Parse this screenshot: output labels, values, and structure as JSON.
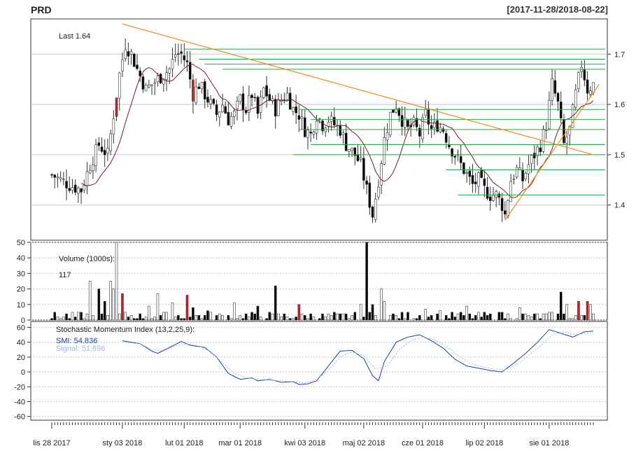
{
  "header": {
    "symbol": "PRD",
    "range": "[2017-11-28/2018-08-22]"
  },
  "colors": {
    "up": "#ffffff",
    "down": "#000000",
    "alt": "#cc2222",
    "grey": "#8c8c8c",
    "ma": "#7a1f1f",
    "trend": "#f08a1f",
    "levels": "#22aa44",
    "smi": "#1a3fa8",
    "signal": "#9fb8e8",
    "grid": "#c8c8c8"
  },
  "chart_data": [
    {
      "type": "candlestick",
      "panel": "price",
      "annotation": "Last 1.64",
      "ylim": [
        1.33,
        1.77
      ],
      "yticks": [
        1.4,
        1.5,
        1.6,
        1.7
      ],
      "ytick_labels": [
        "1.4",
        "1.5",
        "1.6",
        "1.7"
      ],
      "x_ticks": [
        {
          "i": 0,
          "label": "lis 28 2017"
        },
        {
          "i": 24,
          "label": "sty 03 2018"
        },
        {
          "i": 45,
          "label": "lut 01 2018"
        },
        {
          "i": 64,
          "label": "mar 01 2018"
        },
        {
          "i": 86,
          "label": "kwi 03 2018"
        },
        {
          "i": 106,
          "label": "maj 02 2018"
        },
        {
          "i": 126,
          "label": "cze 01 2018"
        },
        {
          "i": 147,
          "label": "lip 02 2018"
        },
        {
          "i": 169,
          "label": "sie 01 2018"
        }
      ],
      "n_bars": 185,
      "key_points": [
        [
          0,
          1.46
        ],
        [
          3,
          1.45
        ],
        [
          6,
          1.44
        ],
        [
          10,
          1.43
        ],
        [
          13,
          1.48
        ],
        [
          16,
          1.52
        ],
        [
          19,
          1.5
        ],
        [
          21,
          1.58
        ],
        [
          23,
          1.66
        ],
        [
          25,
          1.72
        ],
        [
          27,
          1.7
        ],
        [
          29,
          1.67
        ],
        [
          32,
          1.63
        ],
        [
          34,
          1.64
        ],
        [
          36,
          1.65
        ],
        [
          38,
          1.66
        ],
        [
          40,
          1.67
        ],
        [
          42,
          1.7
        ],
        [
          44,
          1.7
        ],
        [
          46,
          1.68
        ],
        [
          48,
          1.62
        ],
        [
          50,
          1.64
        ],
        [
          52,
          1.62
        ],
        [
          54,
          1.6
        ],
        [
          56,
          1.58
        ],
        [
          58,
          1.6
        ],
        [
          60,
          1.57
        ],
        [
          62,
          1.58
        ],
        [
          64,
          1.61
        ],
        [
          66,
          1.59
        ],
        [
          68,
          1.62
        ],
        [
          70,
          1.58
        ],
        [
          72,
          1.63
        ],
        [
          74,
          1.61
        ],
        [
          76,
          1.59
        ],
        [
          78,
          1.61
        ],
        [
          80,
          1.62
        ],
        [
          82,
          1.59
        ],
        [
          84,
          1.58
        ],
        [
          86,
          1.55
        ],
        [
          88,
          1.54
        ],
        [
          90,
          1.58
        ],
        [
          92,
          1.56
        ],
        [
          94,
          1.57
        ],
        [
          96,
          1.56
        ],
        [
          98,
          1.55
        ],
        [
          100,
          1.52
        ],
        [
          103,
          1.5
        ],
        [
          105,
          1.48
        ],
        [
          107,
          1.43
        ],
        [
          109,
          1.38
        ],
        [
          111,
          1.45
        ],
        [
          113,
          1.53
        ],
        [
          115,
          1.58
        ],
        [
          117,
          1.6
        ],
        [
          119,
          1.57
        ],
        [
          121,
          1.55
        ],
        [
          123,
          1.56
        ],
        [
          125,
          1.54
        ],
        [
          127,
          1.58
        ],
        [
          129,
          1.55
        ],
        [
          131,
          1.56
        ],
        [
          133,
          1.55
        ],
        [
          135,
          1.52
        ],
        [
          137,
          1.5
        ],
        [
          139,
          1.48
        ],
        [
          141,
          1.46
        ],
        [
          143,
          1.44
        ],
        [
          145,
          1.45
        ],
        [
          147,
          1.43
        ],
        [
          149,
          1.42
        ],
        [
          151,
          1.42
        ],
        [
          153,
          1.4
        ],
        [
          154,
          1.38
        ],
        [
          156,
          1.45
        ],
        [
          158,
          1.47
        ],
        [
          160,
          1.45
        ],
        [
          162,
          1.48
        ],
        [
          164,
          1.5
        ],
        [
          166,
          1.52
        ],
        [
          168,
          1.56
        ],
        [
          170,
          1.64
        ],
        [
          172,
          1.6
        ],
        [
          174,
          1.52
        ],
        [
          176,
          1.55
        ],
        [
          178,
          1.62
        ],
        [
          180,
          1.68
        ],
        [
          182,
          1.63
        ],
        [
          184,
          1.64
        ]
      ],
      "ma_window": 10,
      "trendlines": [
        {
          "from": [
            24,
            1.76
          ],
          "to": [
            184,
            1.5
          ]
        },
        {
          "from": [
            154,
            1.37
          ],
          "to": [
            186,
            1.64
          ]
        }
      ],
      "levels": [
        {
          "y": 1.71,
          "from": 45
        },
        {
          "y": 1.69,
          "from": 50
        },
        {
          "y": 1.68,
          "from": 52
        },
        {
          "y": 1.67,
          "from": 58
        },
        {
          "y": 1.59,
          "from": 84
        },
        {
          "y": 1.57,
          "from": 88
        },
        {
          "y": 1.55,
          "from": 84
        },
        {
          "y": 1.52,
          "from": 88
        },
        {
          "y": 1.5,
          "from": 82
        },
        {
          "y": 1.47,
          "from": 134
        },
        {
          "y": 1.42,
          "from": 138
        }
      ]
    },
    {
      "type": "bar",
      "panel": "volume",
      "title": "Volume (1000s):",
      "last": "117",
      "ylim": [
        0,
        50
      ],
      "yticks": [
        0,
        10,
        20,
        30,
        40,
        50
      ],
      "ytick_labels": [
        "0",
        "10",
        "20",
        "30",
        "40",
        "50"
      ],
      "peaks": [
        {
          "i": 13,
          "v": 25
        },
        {
          "i": 16,
          "v": 20
        },
        {
          "i": 18,
          "v": 12
        },
        {
          "i": 20,
          "v": 25
        },
        {
          "i": 21,
          "v": 20
        },
        {
          "i": 22,
          "v": 50
        },
        {
          "i": 24,
          "v": 17
        },
        {
          "i": 33,
          "v": 9
        },
        {
          "i": 36,
          "v": 17
        },
        {
          "i": 41,
          "v": 11
        },
        {
          "i": 46,
          "v": 16
        },
        {
          "i": 48,
          "v": 8
        },
        {
          "i": 53,
          "v": 6
        },
        {
          "i": 62,
          "v": 11
        },
        {
          "i": 70,
          "v": 9
        },
        {
          "i": 76,
          "v": 22
        },
        {
          "i": 84,
          "v": 10
        },
        {
          "i": 105,
          "v": 10
        },
        {
          "i": 107,
          "v": 50
        },
        {
          "i": 109,
          "v": 10
        },
        {
          "i": 112,
          "v": 20
        },
        {
          "i": 113,
          "v": 12
        },
        {
          "i": 127,
          "v": 7
        },
        {
          "i": 132,
          "v": 6
        },
        {
          "i": 141,
          "v": 9
        },
        {
          "i": 152,
          "v": 5
        },
        {
          "i": 159,
          "v": 8
        },
        {
          "i": 173,
          "v": 18
        },
        {
          "i": 175,
          "v": 10
        },
        {
          "i": 179,
          "v": 12
        },
        {
          "i": 182,
          "v": 12
        },
        {
          "i": 183,
          "v": 10
        }
      ]
    },
    {
      "type": "line",
      "panel": "smi",
      "title": "Stochastic Momentum Index (13,2,25,9):",
      "series": [
        {
          "name": "SMI",
          "label": "SMI: 54.836",
          "points": [
            [
              24,
              42
            ],
            [
              30,
              38
            ],
            [
              34,
              28
            ],
            [
              36,
              25
            ],
            [
              40,
              33
            ],
            [
              44,
              41
            ],
            [
              47,
              36
            ],
            [
              52,
              33
            ],
            [
              56,
              20
            ],
            [
              60,
              -2
            ],
            [
              64,
              -10
            ],
            [
              68,
              -8
            ],
            [
              70,
              -12
            ],
            [
              74,
              -10
            ],
            [
              78,
              -14
            ],
            [
              82,
              -13
            ],
            [
              84,
              -17
            ],
            [
              87,
              -16
            ],
            [
              90,
              -12
            ],
            [
              94,
              8
            ],
            [
              98,
              28
            ],
            [
              102,
              29
            ],
            [
              106,
              18
            ],
            [
              109,
              -5
            ],
            [
              111,
              -12
            ],
            [
              113,
              14
            ],
            [
              117,
              40
            ],
            [
              121,
              47
            ],
            [
              125,
              50
            ],
            [
              129,
              42
            ],
            [
              133,
              32
            ],
            [
              137,
              17
            ],
            [
              141,
              8
            ],
            [
              145,
              5
            ],
            [
              149,
              2
            ],
            [
              153,
              0
            ],
            [
              157,
              12
            ],
            [
              161,
              25
            ],
            [
              165,
              40
            ],
            [
              169,
              57
            ],
            [
              173,
              52
            ],
            [
              177,
              47
            ],
            [
              181,
              54
            ],
            [
              184,
              55
            ]
          ]
        },
        {
          "name": "Signal",
          "label": "Signal: 51.696",
          "points": [
            [
              24,
              40
            ],
            [
              30,
              38
            ],
            [
              34,
              30
            ],
            [
              38,
              28
            ],
            [
              42,
              35
            ],
            [
              46,
              38
            ],
            [
              50,
              35
            ],
            [
              54,
              27
            ],
            [
              58,
              12
            ],
            [
              62,
              -2
            ],
            [
              66,
              -8
            ],
            [
              70,
              -10
            ],
            [
              74,
              -11
            ],
            [
              78,
              -12
            ],
            [
              82,
              -13
            ],
            [
              86,
              -15
            ],
            [
              90,
              -10
            ],
            [
              94,
              2
            ],
            [
              98,
              20
            ],
            [
              102,
              27
            ],
            [
              106,
              22
            ],
            [
              110,
              4
            ],
            [
              114,
              8
            ],
            [
              118,
              30
            ],
            [
              122,
              42
            ],
            [
              126,
              47
            ],
            [
              130,
              43
            ],
            [
              134,
              35
            ],
            [
              138,
              22
            ],
            [
              142,
              12
            ],
            [
              146,
              7
            ],
            [
              150,
              4
            ],
            [
              154,
              3
            ],
            [
              158,
              10
            ],
            [
              162,
              22
            ],
            [
              166,
              35
            ],
            [
              170,
              50
            ],
            [
              174,
              54
            ],
            [
              178,
              50
            ],
            [
              182,
              52
            ],
            [
              184,
              52
            ]
          ]
        }
      ],
      "ylim": [
        -65,
        68
      ],
      "yticks": [
        -60,
        -40,
        -20,
        0,
        20,
        40,
        60
      ],
      "ytick_labels": [
        "-60",
        "-40",
        "-20",
        "0",
        "20",
        "40",
        "60"
      ]
    }
  ]
}
